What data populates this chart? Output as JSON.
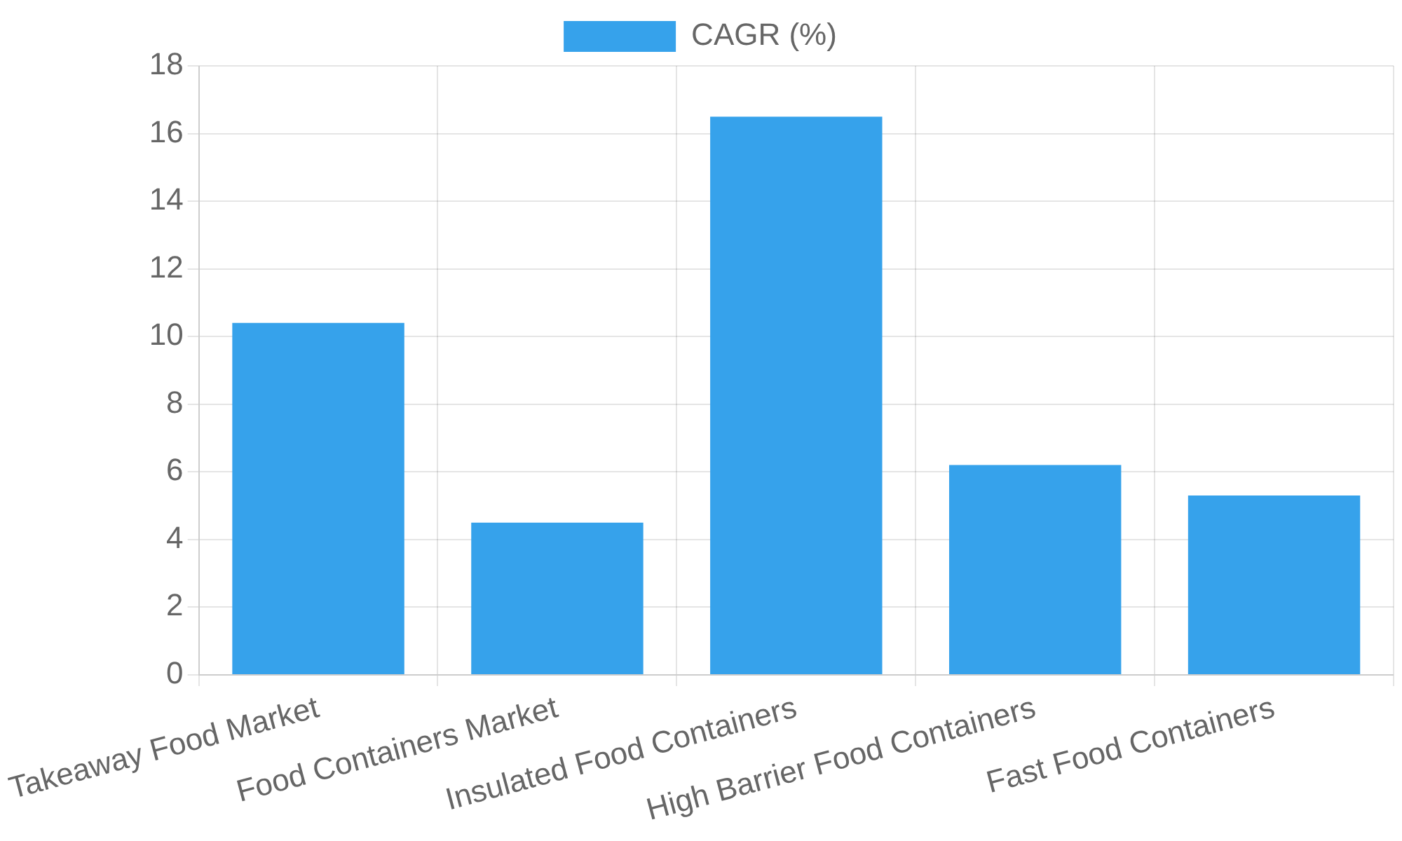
{
  "chart_data": {
    "type": "bar",
    "categories": [
      "Takeaway Food Market",
      "Food Containers Market",
      "Insulated Food Containers",
      "High Barrier Food Containers",
      "Fast Food Containers"
    ],
    "series": [
      {
        "name": "CAGR (%)",
        "color": "#36a2eb",
        "values": [
          10.4,
          4.5,
          16.5,
          6.2,
          5.3
        ]
      }
    ],
    "ylim": [
      0,
      18
    ],
    "yticks": [
      0,
      2,
      4,
      6,
      8,
      10,
      12,
      14,
      16,
      18
    ],
    "grid": true,
    "legend": "top"
  }
}
